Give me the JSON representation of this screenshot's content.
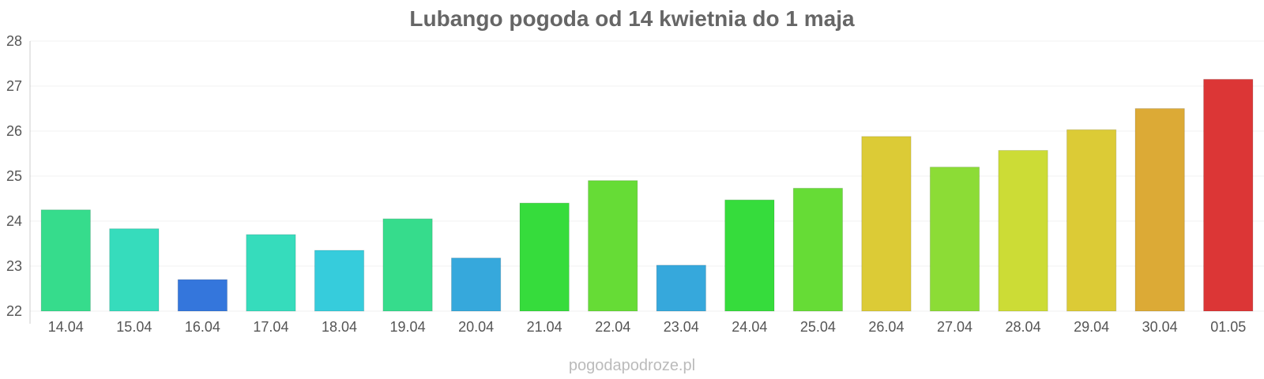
{
  "chart_data": {
    "type": "bar",
    "title": "Lubango pogoda od 14 kwietnia do 1 maja",
    "categories": [
      "14.04",
      "15.04",
      "16.04",
      "17.04",
      "18.04",
      "19.04",
      "20.04",
      "21.04",
      "22.04",
      "23.04",
      "24.04",
      "25.04",
      "26.04",
      "27.04",
      "28.04",
      "29.04",
      "30.04",
      "01.05"
    ],
    "values": [
      24.25,
      23.83,
      22.7,
      23.7,
      23.35,
      24.05,
      23.18,
      24.4,
      24.9,
      23.02,
      24.47,
      24.73,
      25.88,
      25.2,
      25.57,
      26.03,
      26.5,
      27.15
    ],
    "colors": [
      "#36dc8c",
      "#36dcbc",
      "#3476dc",
      "#36dcbc",
      "#36ccdc",
      "#36dc8c",
      "#36a8dc",
      "#36dc3c",
      "#66dc36",
      "#36a8dc",
      "#36dc3c",
      "#66dc36",
      "#dccb36",
      "#8cdc36",
      "#ccdc36",
      "#dccb36",
      "#dcaa36",
      "#dc3636"
    ],
    "ylim": [
      22,
      28
    ],
    "yticks": [
      22,
      23,
      24,
      25,
      26,
      27,
      28
    ],
    "xlabel": "",
    "ylabel": "",
    "grid": true,
    "watermark": "pogodapodroze.pl"
  }
}
